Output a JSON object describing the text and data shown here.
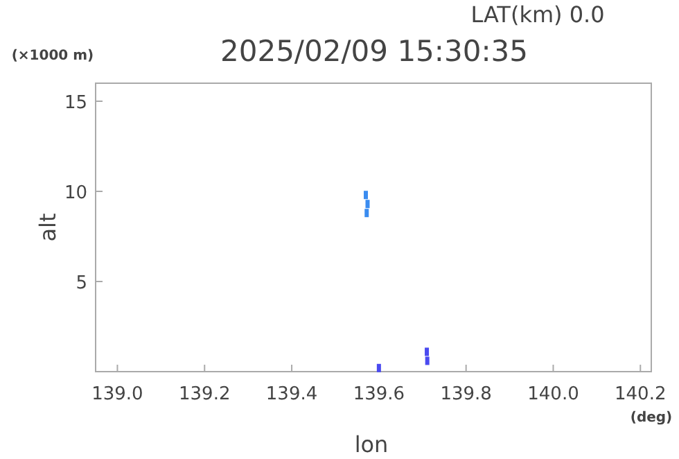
{
  "chart_data": {
    "type": "scatter",
    "title": "2025/02/09 15:30:35",
    "subtitle": "LAT(km) 0.0",
    "xlabel": "lon",
    "ylabel": "alt",
    "annotations": [
      "(×1000 m)",
      "(deg)"
    ],
    "series": [
      {
        "color": "#3a8cf0",
        "x": [
          139.57,
          139.574,
          139.572
        ],
        "values": [
          9.8,
          9.3,
          8.8
        ]
      },
      {
        "color": "#4a4af0",
        "x": [
          139.71,
          139.711,
          139.6
        ],
        "values": [
          1.1,
          0.6,
          0.2
        ]
      }
    ],
    "xlim": [
      138.95,
      140.225
    ],
    "ylim": [
      0,
      16
    ],
    "xticks": [
      {
        "value": 139,
        "label": "139.0"
      },
      139.2,
      139.4,
      139.6,
      139.8,
      {
        "value": 140,
        "label": "140.0"
      },
      140.2
    ],
    "yticks": [
      5,
      10,
      15
    ],
    "grid": false,
    "marker": "square"
  }
}
